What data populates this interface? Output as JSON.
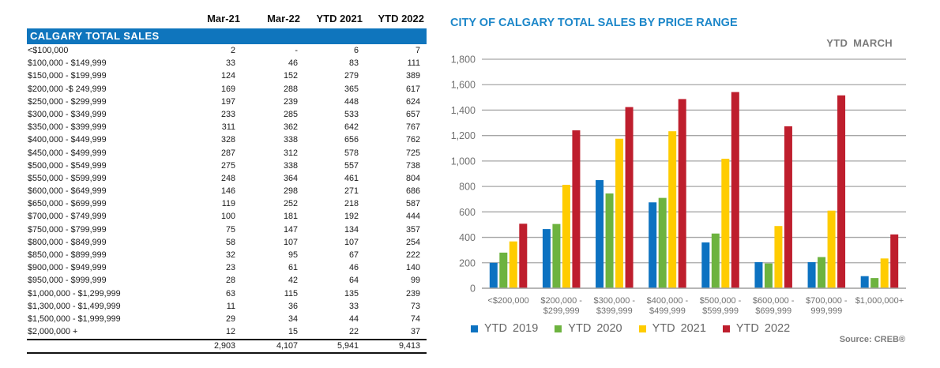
{
  "table": {
    "headers": [
      "Mar-21",
      "Mar-22",
      "YTD 2021",
      "YTD 2022"
    ],
    "section_title": "CALGARY TOTAL SALES",
    "rows": [
      {
        "label": "<$100,000",
        "values": [
          "2",
          "-",
          "6",
          "7"
        ]
      },
      {
        "label": "$100,000 - $149,999",
        "values": [
          "33",
          "46",
          "83",
          "111"
        ]
      },
      {
        "label": "$150,000 - $199,999",
        "values": [
          "124",
          "152",
          "279",
          "389"
        ]
      },
      {
        "label": "$200,000 -$ 249,999",
        "values": [
          "169",
          "288",
          "365",
          "617"
        ]
      },
      {
        "label": "$250,000 - $299,999",
        "values": [
          "197",
          "239",
          "448",
          "624"
        ]
      },
      {
        "label": "$300,000 - $349,999",
        "values": [
          "233",
          "285",
          "533",
          "657"
        ]
      },
      {
        "label": "$350,000 - $399,999",
        "values": [
          "311",
          "362",
          "642",
          "767"
        ]
      },
      {
        "label": "$400,000 - $449,999",
        "values": [
          "328",
          "338",
          "656",
          "762"
        ]
      },
      {
        "label": "$450,000 - $499,999",
        "values": [
          "287",
          "312",
          "578",
          "725"
        ]
      },
      {
        "label": "$500,000 - $549,999",
        "values": [
          "275",
          "338",
          "557",
          "738"
        ]
      },
      {
        "label": "$550,000 - $599,999",
        "values": [
          "248",
          "364",
          "461",
          "804"
        ]
      },
      {
        "label": "$600,000 - $649,999",
        "values": [
          "146",
          "298",
          "271",
          "686"
        ]
      },
      {
        "label": "$650,000 - $699,999",
        "values": [
          "119",
          "252",
          "218",
          "587"
        ]
      },
      {
        "label": "$700,000 - $749,999",
        "values": [
          "100",
          "181",
          "192",
          "444"
        ]
      },
      {
        "label": "$750,000 - $799,999",
        "values": [
          "75",
          "147",
          "134",
          "357"
        ]
      },
      {
        "label": "$800,000 - $849,999",
        "values": [
          "58",
          "107",
          "107",
          "254"
        ]
      },
      {
        "label": "$850,000 - $899,999",
        "values": [
          "32",
          "95",
          "67",
          "222"
        ]
      },
      {
        "label": "$900,000 - $949,999",
        "values": [
          "23",
          "61",
          "46",
          "140"
        ]
      },
      {
        "label": "$950,000 - $999,999",
        "values": [
          "28",
          "42",
          "64",
          "99"
        ]
      },
      {
        "label": "$1,000,000 - $1,299,999",
        "values": [
          "63",
          "115",
          "135",
          "239"
        ]
      },
      {
        "label": "$1,300,000 - $1,499,999",
        "values": [
          "11",
          "36",
          "33",
          "73"
        ]
      },
      {
        "label": "$1,500,000 - $1,999,999",
        "values": [
          "29",
          "34",
          "44",
          "74"
        ]
      },
      {
        "label": "$2,000,000 +",
        "values": [
          "12",
          "15",
          "22",
          "37"
        ]
      }
    ],
    "totals": [
      "2,903",
      "4,107",
      "5,941",
      "9,413"
    ],
    "colors": {
      "section_bar": "#0f75bd"
    }
  },
  "chart_data": {
    "type": "bar",
    "title": "CITY OF CALGARY TOTAL SALES BY PRICE RANGE",
    "subtitle": "YTD MARCH",
    "xlabel": "",
    "ylabel": "",
    "ylim": [
      0,
      1800
    ],
    "yticks": [
      0,
      200,
      400,
      600,
      800,
      1000,
      1200,
      1400,
      1600,
      1800
    ],
    "ytick_labels": [
      "0",
      "200",
      "400",
      "600",
      "800",
      "1,000",
      "1,200",
      "1,400",
      "1,600",
      "1,800"
    ],
    "grid": true,
    "categories": [
      [
        "<$200,000"
      ],
      [
        "$200,000 -",
        "$299,999"
      ],
      [
        "$300,000 -",
        "$399,999"
      ],
      [
        "$400,000 -",
        "$499,999"
      ],
      [
        "$500,000 -",
        "$599,999"
      ],
      [
        "$600,000 -",
        "$699,999"
      ],
      [
        "$700,000 -",
        "999,999"
      ],
      [
        "$1,000,000+"
      ]
    ],
    "series": [
      {
        "name": "YTD  2019",
        "color": "#0c72c1",
        "values": [
          200,
          465,
          850,
          675,
          360,
          205,
          205,
          95
        ]
      },
      {
        "name": "YTD  2020",
        "color": "#6db33f",
        "values": [
          280,
          505,
          745,
          710,
          430,
          195,
          245,
          80
        ]
      },
      {
        "name": "YTD  2021",
        "color": "#ffcc00",
        "values": [
          368,
          813,
          1175,
          1234,
          1018,
          489,
          610,
          234
        ]
      },
      {
        "name": "YTD  2022",
        "color": "#be1e2d",
        "values": [
          507,
          1241,
          1424,
          1487,
          1542,
          1273,
          1516,
          423
        ]
      }
    ],
    "legend_position": "bottom-left",
    "source": "Source: CREB®"
  }
}
